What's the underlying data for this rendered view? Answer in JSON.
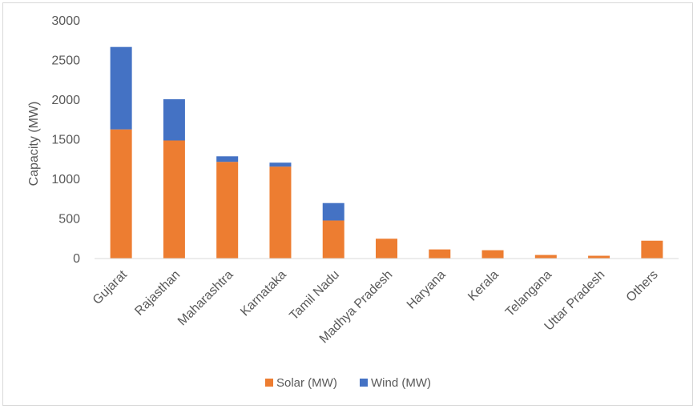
{
  "chart_data": {
    "type": "bar",
    "stacked": true,
    "title": "",
    "xlabel": "",
    "ylabel": "Capacity (MW)",
    "ylim": [
      0,
      3000
    ],
    "yticks": [
      0,
      500,
      1000,
      1500,
      2000,
      2500,
      3000
    ],
    "categories": [
      "Gujarat",
      "Rajasthan",
      "Maharashtra",
      "Karnataka",
      "Tamil Nadu",
      "Madhya Pradesh",
      "Haryana",
      "Kerala",
      "Telangana",
      "Uttar Pradesh",
      "Others"
    ],
    "series": [
      {
        "name": "Solar (MW)",
        "color": "#ED7D31",
        "values": [
          1630,
          1490,
          1220,
          1160,
          480,
          250,
          115,
          105,
          45,
          35,
          225
        ]
      },
      {
        "name": "Wind (MW)",
        "color": "#4472C4",
        "values": [
          1040,
          520,
          70,
          50,
          220,
          0,
          0,
          0,
          0,
          0,
          0
        ]
      }
    ],
    "grid": false,
    "legend": "bottom"
  }
}
